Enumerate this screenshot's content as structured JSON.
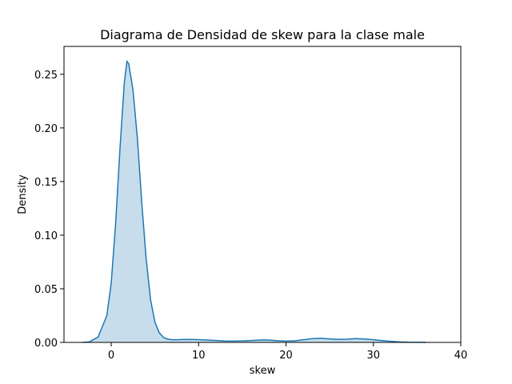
{
  "chart_data": {
    "type": "area",
    "title": "Diagrama de Densidad de skew para la clase male",
    "xlabel": "skew",
    "ylabel": "Density",
    "xlim": [
      -5.4,
      40
    ],
    "ylim": [
      0,
      0.276
    ],
    "xticks": [
      0,
      10,
      20,
      30,
      40
    ],
    "yticks": [
      0.0,
      0.05,
      0.1,
      0.15,
      0.2,
      0.25
    ],
    "xtick_labels": [
      "0",
      "10",
      "20",
      "30",
      "40"
    ],
    "ytick_labels": [
      "0.00",
      "0.05",
      "0.10",
      "0.15",
      "0.20",
      "0.25"
    ],
    "grid": false,
    "colors": {
      "line": "#1f77b4",
      "fill": "#1f77b4",
      "fill_opacity": 0.25
    },
    "series": [
      {
        "x": [
          -3.3,
          -2.5,
          -1.5,
          -0.5,
          0,
          0.5,
          1.0,
          1.5,
          1.8,
          2.0,
          2.5,
          3.0,
          3.5,
          4.0,
          4.5,
          5.0,
          5.5,
          6.0,
          6.5,
          7.0,
          7.5,
          8.0,
          9.0,
          10.0,
          11.0,
          12.0,
          13.0,
          14.0,
          15.0,
          16.0,
          17.0,
          17.5,
          18.0,
          19.0,
          20.0,
          21.0,
          22.0,
          23.0,
          24.0,
          25.0,
          26.0,
          27.0,
          28.0,
          29.0,
          30.0,
          31.0,
          32.0,
          33.0,
          34.0,
          35.0,
          36.0
        ],
        "y": [
          0.0,
          0.0005,
          0.005,
          0.025,
          0.055,
          0.11,
          0.18,
          0.242,
          0.262,
          0.26,
          0.235,
          0.19,
          0.13,
          0.078,
          0.04,
          0.019,
          0.009,
          0.0045,
          0.003,
          0.0025,
          0.0025,
          0.0027,
          0.0028,
          0.0026,
          0.0022,
          0.0018,
          0.0013,
          0.0012,
          0.0014,
          0.0018,
          0.0022,
          0.0023,
          0.0022,
          0.0016,
          0.0012,
          0.0015,
          0.0025,
          0.0035,
          0.0038,
          0.0033,
          0.0028,
          0.003,
          0.0035,
          0.0032,
          0.0025,
          0.0017,
          0.001,
          0.0005,
          0.0002,
          0.0001,
          0.0
        ]
      }
    ]
  }
}
